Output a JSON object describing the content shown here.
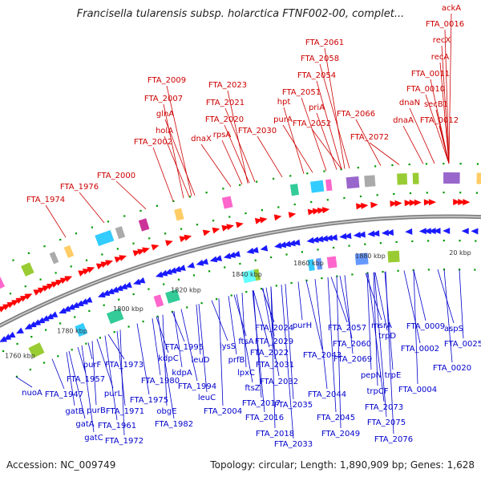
{
  "title": "Francisella tularensis subsp. holarctica FTNF002-00, complet...",
  "footer": {
    "accession": "Accession: NC_009749",
    "topology": "Topology: circular; Length: 1,890,909 bp; Genes: 1,628"
  },
  "colors": {
    "forward_label": "#cc0000",
    "reverse_label": "#0000cc",
    "forward_arrow": "#ff0000",
    "reverse_arrow": "#1a1aff",
    "backbone": "#808080",
    "tick": "#009900"
  },
  "scale_labels": [
    "1760 kbp",
    "1780 kbp",
    "1800 kbp",
    "1820 kbp",
    "1840 kbp",
    "1860 kbp",
    "1880 kbp",
    "20 kbp"
  ],
  "forward_genes": [
    "FTA_1974",
    "FTA_1976",
    "FTA_2000",
    "FTA_2002",
    "holA",
    "glnA",
    "FTA_2007",
    "FTA_2009",
    "dnaX",
    "rpsA",
    "FTA_2020",
    "FTA_2021",
    "FTA_2023",
    "FTA_2030",
    "purA",
    "hpt",
    "FTA_2051",
    "FTA_2052",
    "priA",
    "FTA_2054",
    "FTA_2058",
    "FTA_2061",
    "FTA_2066",
    "FTA_2072",
    "dnaA",
    "dnaN",
    "FTA_0012",
    "secB1",
    "FTA_0010",
    "FTA_0011",
    "recA",
    "recX",
    "FTA_0016",
    "ackA"
  ],
  "reverse_genes": [
    "nuoA",
    "FTA_1947",
    "gatB",
    "purB",
    "gatA",
    "gatC",
    "FTA_1957",
    "purF",
    "purL",
    "FTA_1961",
    "FTA_1971",
    "FTA_1972",
    "FTA_1973",
    "FTA_1975",
    "FTA_1980",
    "obgE",
    "FTA_1982",
    "kdpC",
    "kdpA",
    "leuD",
    "FTA_1994",
    "FTA_1995",
    "leuC",
    "FTA_2004",
    "lysS",
    "ftsA",
    "prfB",
    "lpxC",
    "ftsZ",
    "FTA_2016",
    "FTA_2017",
    "FTA_2018",
    "FTA_2022",
    "FTA_2024",
    "FTA_2029",
    "FTA_2031",
    "FTA_2032",
    "FTA_2033",
    "FTA_2035",
    "purH",
    "FTA_2043",
    "FTA_2044",
    "FTA_2045",
    "FTA_2049",
    "FTA_2057",
    "FTA_2060",
    "FTA_2069",
    "pepN",
    "msrA",
    "trpD",
    "trpE",
    "trpCF",
    "FTA_2073",
    "FTA_2075",
    "FTA_2076",
    "FTA_0004",
    "FTA_0002",
    "FTA_0009",
    "FTA_0020",
    "FTA_0025",
    "aspS"
  ]
}
